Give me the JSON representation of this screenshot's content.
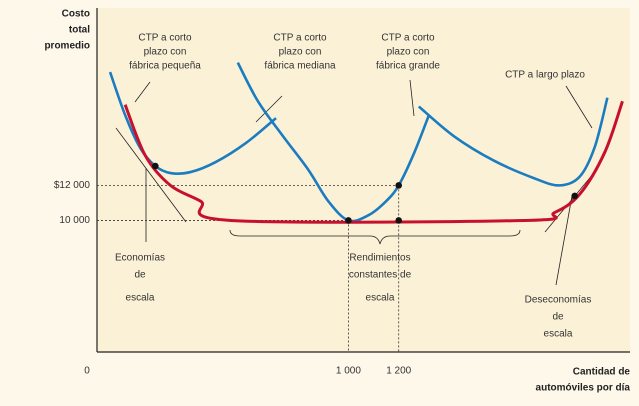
{
  "chart_data": {
    "type": "line",
    "y_label": [
      "Costo",
      "total",
      "promedio"
    ],
    "x_label": [
      "Cantidad de",
      "automóviles por día"
    ],
    "xlim": [
      0,
      2112
    ],
    "ylim": [
      2500,
      22000
    ],
    "xticks": [
      {
        "value": 0,
        "label": "0"
      },
      {
        "value": 1000,
        "label": "1 000"
      },
      {
        "value": 1200,
        "label": "1 200"
      }
    ],
    "yticks": [
      {
        "value": 12000,
        "label": "$12 000"
      },
      {
        "value": 10000,
        "label": "10 000"
      }
    ],
    "series": [
      {
        "name": "CTP a corto plazo con fábrica pequeña",
        "color": "#1b7cc0",
        "x": [
          52,
          112,
          172,
          232,
          292,
          372,
          472,
          592,
          712
        ],
        "values": [
          18460,
          16009,
          14128,
          13102,
          12703,
          12760,
          13330,
          14413,
          15838
        ]
      },
      {
        "name": "CTP a corto plazo con fábrica mediana",
        "color": "#1b7cc0",
        "x": [
          560,
          640,
          740,
          840,
          920,
          1000,
          1080,
          1150,
          1200,
          1260,
          1320
        ],
        "values": [
          19000,
          16800,
          14800,
          12900,
          11100,
          10000,
          10300,
          11100,
          12000,
          13800,
          16000
        ]
      },
      {
        "name": "CTP a corto plazo con fábrica grande",
        "color": "#1b7cc0",
        "x": [
          1280,
          1420,
          1580,
          1740,
          1840,
          1920,
          1980,
          2030
        ],
        "values": [
          16500,
          14800,
          13400,
          12400,
          12000,
          12500,
          14200,
          17000
        ]
      },
      {
        "name": "CTP a largo plazo",
        "color": "#c8102e",
        "x": [
          112,
          192,
          292,
          412,
          532,
          1700,
          1820,
          1920,
          2020,
          2090
        ],
        "values": [
          16600,
          13700,
          12000,
          11100,
          10000,
          10000,
          10450,
          11500,
          13900,
          16800
        ]
      }
    ],
    "points": {
      "x": [
        232,
        1000,
        1200,
        1200,
        1900
      ],
      "values": [
        13102,
        10000,
        10000,
        12000,
        11400
      ],
      "color": "#111111"
    },
    "annotations": [
      {
        "lines": [
          "CTP a corto",
          "plazo con",
          "fábrica pequeña"
        ]
      },
      {
        "lines": [
          "CTP a corto",
          "plazo con",
          "fábrica mediana"
        ]
      },
      {
        "lines": [
          "CTP a corto",
          "plazo con",
          "fábrica grande"
        ]
      },
      {
        "lines": [
          "CTP a largo plazo"
        ]
      },
      {
        "lines": [
          "Economías",
          "de",
          "escala"
        ]
      },
      {
        "lines": [
          "Rendimientos",
          "constantes de",
          "escala"
        ]
      },
      {
        "lines": [
          "Deseconomías",
          "de",
          "escala"
        ]
      }
    ]
  }
}
